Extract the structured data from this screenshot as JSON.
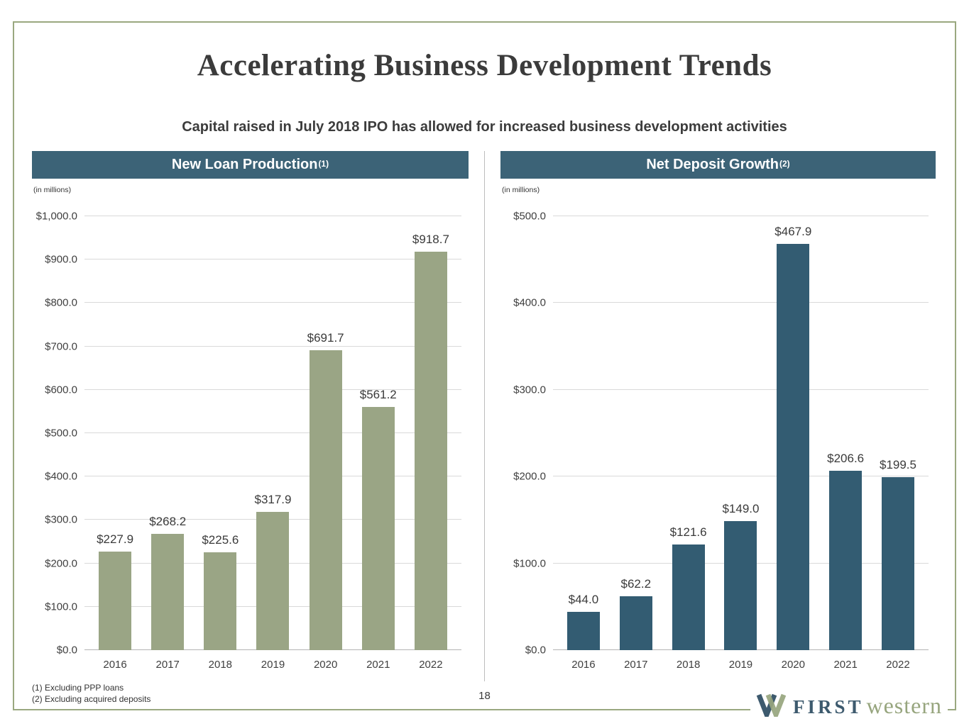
{
  "slide": {
    "title": "Accelerating Business Development Trends",
    "subtitle": "Capital raised in July 2018 IPO has allowed for increased business development activities",
    "page_number": "18",
    "footnotes": [
      "(1)  Excluding PPP loans",
      "(2)  Excluding acquired deposits"
    ],
    "logo": {
      "first": "FIRST",
      "western": "western"
    }
  },
  "colors": {
    "panel_header_bg": "#3c6377",
    "left_bar": "#9aa585",
    "right_bar": "#335c72",
    "frame_border": "#9aa880",
    "logo_teal": "#3d5a6e",
    "logo_olive": "#97a57e"
  },
  "chart_data": [
    {
      "type": "bar",
      "title": "New Loan Production",
      "title_superscript": "(1)",
      "units_label": "(in millions)",
      "categories": [
        "2016",
        "2017",
        "2018",
        "2019",
        "2020",
        "2021",
        "2022"
      ],
      "values": [
        227.9,
        268.2,
        225.6,
        317.9,
        691.7,
        561.2,
        918.7
      ],
      "labels": [
        "$227.9",
        "$268.2",
        "$225.6",
        "$317.9",
        "$691.7",
        "$561.2",
        "$918.7"
      ],
      "ylim": [
        0,
        1000
      ],
      "ytick_step": 100,
      "ytick_labels": [
        "$0.0",
        "$100.0",
        "$200.0",
        "$300.0",
        "$400.0",
        "$500.0",
        "$600.0",
        "$700.0",
        "$800.0",
        "$900.0",
        "$1,000.0"
      ],
      "bar_color": "#9aa585",
      "grid": true,
      "legend": "none"
    },
    {
      "type": "bar",
      "title": "Net Deposit Growth",
      "title_superscript": "(2)",
      "units_label": "(in millions)",
      "categories": [
        "2016",
        "2017",
        "2018",
        "2019",
        "2020",
        "2021",
        "2022"
      ],
      "values": [
        44.0,
        62.2,
        121.6,
        149.0,
        467.9,
        206.6,
        199.5
      ],
      "labels": [
        "$44.0",
        "$62.2",
        "$121.6",
        "$149.0",
        "$467.9",
        "$206.6",
        "$199.5"
      ],
      "ylim": [
        0,
        500
      ],
      "ytick_step": 100,
      "ytick_labels": [
        "$0.0",
        "$100.0",
        "$200.0",
        "$300.0",
        "$400.0",
        "$500.0"
      ],
      "bar_color": "#335c72",
      "grid": true,
      "legend": "none"
    }
  ]
}
